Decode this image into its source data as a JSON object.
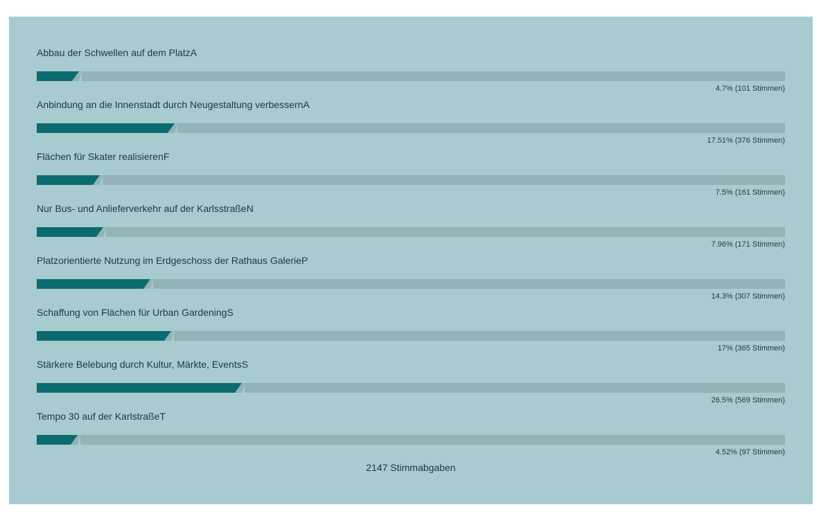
{
  "poll": {
    "items": [
      {
        "label": "Abbau der Schwellen auf dem PlatzA",
        "percent": 4.7,
        "result": "4.7% (101 Stimmen)"
      },
      {
        "label": "Anbindung an die Innenstadt durch Neugestaltung verbessernA",
        "percent": 17.51,
        "result": "17.51% (376 Stimmen)"
      },
      {
        "label": "Flächen für Skater realisierenF",
        "percent": 7.5,
        "result": "7.5% (161 Stimmen)"
      },
      {
        "label": "Nur Bus- und Anlieferverkehr auf der KarlsstraßeN",
        "percent": 7.96,
        "result": "7.96% (171 Stimmen)"
      },
      {
        "label": "Platzorientierte Nutzung im Erdgeschoss der Rathaus GalerieP",
        "percent": 14.3,
        "result": "14.3% (307 Stimmen)"
      },
      {
        "label": "Schaffung von Flächen für Urban GardeningS",
        "percent": 17,
        "result": "17% (365 Stimmen)"
      },
      {
        "label": "Stärkere Belebung durch Kultur, Märkte, EventsS",
        "percent": 26.5,
        "result": "26.5% (569 Stimmen)"
      },
      {
        "label": "Tempo 30 auf der KarlstraßeT",
        "percent": 4.52,
        "result": "4.52% (97 Stimmen)"
      }
    ],
    "total": "2147 Stimmabgaben"
  },
  "colors": {
    "panel": "#a7cbcf",
    "fill": "#0b6b6e",
    "track": "#93b3b6",
    "text": "#1f3a3d"
  }
}
